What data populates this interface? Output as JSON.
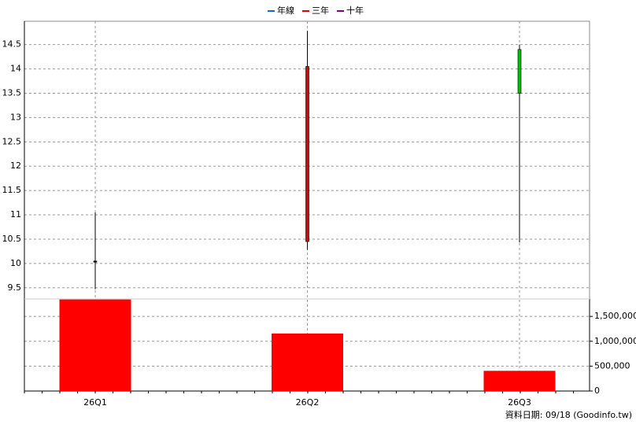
{
  "chart_data": {
    "type": "candlestick",
    "legend": [
      {
        "name": "年線",
        "color": "#1f5fd0"
      },
      {
        "name": "三年",
        "color": "#e00000"
      },
      {
        "name": "十年",
        "color": "#800080"
      }
    ],
    "categories": [
      "26Q1",
      "26Q2",
      "26Q3"
    ],
    "open": [
      10.05,
      10.45,
      14.4
    ],
    "high": [
      11.05,
      14.78,
      14.5
    ],
    "low": [
      9.47,
      10.28,
      10.43
    ],
    "close": [
      10.05,
      14.05,
      13.5
    ],
    "up_color": "#e00000",
    "down_color": "#00c000",
    "flat_color": "#000000",
    "ylim": [
      9.27,
      14.98
    ],
    "yticks": [
      9.5,
      10,
      10.5,
      11,
      11.5,
      12,
      12.5,
      13,
      13.5,
      14,
      14.5
    ],
    "volume": {
      "values": [
        1840000,
        1156000,
        406000
      ],
      "color": "#ff0000",
      "ylim": [
        0,
        1850000
      ],
      "yticks": [
        0,
        {
          "value": 500000,
          "label": "500,000"
        },
        {
          "value": 1000000,
          "label": "1,000,000"
        },
        {
          "value": 1500000,
          "label": "1,500,000"
        }
      ]
    },
    "grid": true,
    "footer": "資料日期: 09/18  (Goodinfo.tw)"
  }
}
